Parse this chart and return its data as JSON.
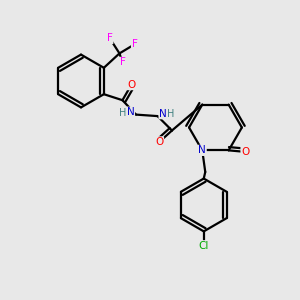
{
  "background_color": "#e8e8e8",
  "atom_colors": {
    "C": "#000000",
    "N": "#0000CD",
    "O": "#FF0000",
    "F": "#FF00FF",
    "Cl": "#00AA00",
    "H": "#408080"
  },
  "bond_color": "#000000",
  "bond_width": 1.6,
  "xlim": [
    0,
    10
  ],
  "ylim": [
    0,
    10
  ]
}
